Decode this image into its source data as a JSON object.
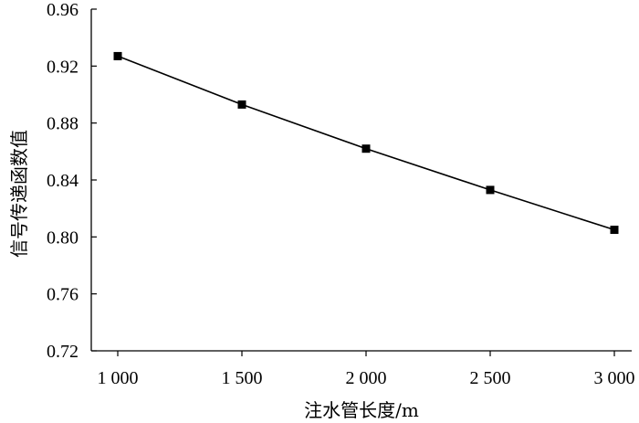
{
  "chart_data": {
    "type": "line",
    "title": "",
    "xlabel": "注水管长度/m",
    "ylabel": "信号传递函数值",
    "x": [
      1000,
      1500,
      2000,
      2500,
      3000
    ],
    "x_tick_values": [
      1000,
      1500,
      2000,
      2500,
      3000
    ],
    "x_tick_labels": [
      "1 000",
      "1 500",
      "2 000",
      "2 500",
      "3 000"
    ],
    "xlim": [
      1000,
      3000
    ],
    "y_tick_values": [
      0.72,
      0.76,
      0.8,
      0.84,
      0.88,
      0.92,
      0.96
    ],
    "y_tick_labels": [
      "0.72",
      "0.76",
      "0.80",
      "0.84",
      "0.88",
      "0.92",
      "0.96"
    ],
    "ylim": [
      0.72,
      0.96
    ],
    "grid": false,
    "series": [
      {
        "values": [
          0.927,
          0.893,
          0.862,
          0.833,
          0.805
        ],
        "marker": "square",
        "color": "#000000"
      }
    ]
  }
}
